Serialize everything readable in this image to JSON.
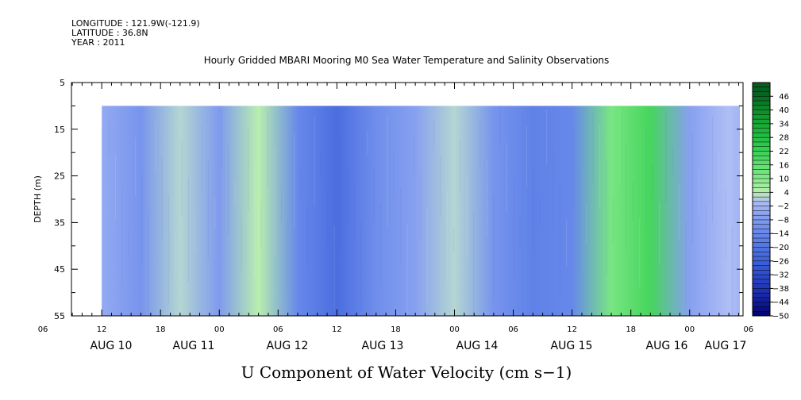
{
  "header": {
    "longitude": "LONGITUDE : 121.9W(-121.9)",
    "latitude": "LATITUDE : 36.8N",
    "year": "YEAR : 2011"
  },
  "chart_data": {
    "type": "heatmap",
    "title": "Hourly Gridded MBARI Mooring M0 Sea Water Temperature and Salinity Observations",
    "xlabel": "U Component of Water Velocity (cm s−1)",
    "ylabel": "DEPTH (m)",
    "ylim": [
      5,
      55
    ],
    "y_inverted": true,
    "y_ticks": [
      "5",
      "15",
      "25",
      "35",
      "45",
      "55"
    ],
    "hour_ticks": [
      "06",
      "12",
      "18",
      "00",
      "06",
      "12",
      "18",
      "00",
      "06",
      "12",
      "18",
      "00",
      "06",
      "12",
      "18",
      "00",
      "06",
      "12",
      "18",
      "00",
      "06",
      "12",
      "18",
      "00",
      "06",
      "12",
      "18",
      "00",
      "06",
      "12",
      "18",
      "00"
    ],
    "day_labels": [
      "AUG 10",
      "AUG 11",
      "AUG 12",
      "AUG 13",
      "AUG 14",
      "AUG 15",
      "AUG 16",
      "AUG 17"
    ],
    "data_depth_range": [
      10,
      55
    ],
    "colorbar": {
      "levels": [
        "46",
        "40",
        "34",
        "28",
        "22",
        "16",
        "10",
        "4",
        "−2",
        "−8",
        "−14",
        "−20",
        "−26",
        "−32",
        "−38",
        "−44",
        "−50"
      ],
      "level_values": [
        46,
        40,
        34,
        28,
        22,
        16,
        10,
        4,
        -2,
        -8,
        -14,
        -20,
        -26,
        -32,
        -38,
        -44,
        -50
      ],
      "range": [
        -50,
        52
      ]
    },
    "velocity_profile": {
      "x_unit": "hours since AUG 10 00",
      "x": [
        12,
        16,
        20,
        24,
        28,
        32,
        36,
        40,
        44,
        48,
        52,
        56,
        60,
        64,
        68,
        72,
        76,
        80,
        84,
        88,
        92,
        96,
        100,
        104,
        108,
        112,
        116,
        120,
        124,
        128,
        132,
        136,
        140,
        144,
        148,
        152,
        156,
        160,
        164,
        168,
        172,
        176,
        180,
        184,
        188
      ],
      "values": [
        -4,
        -10,
        2,
        -8,
        4,
        -14,
        -22,
        -12,
        -6,
        2,
        -10,
        -16,
        -14,
        12,
        20,
        -6,
        0,
        -8,
        -22,
        -14,
        -4,
        2,
        -12,
        -6,
        -2,
        -16,
        -26,
        -18,
        6,
        4,
        -6,
        6,
        8,
        -2,
        12,
        16,
        -6,
        -10,
        4,
        12,
        6,
        -8,
        -4,
        4,
        8
      ]
    }
  }
}
